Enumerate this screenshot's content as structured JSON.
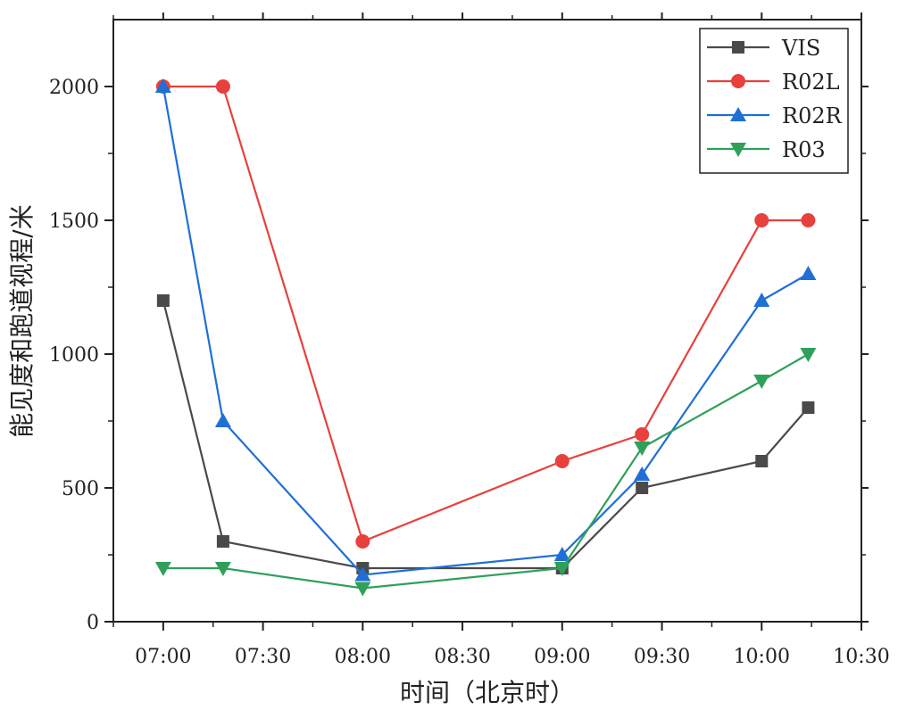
{
  "chart_data": {
    "type": "line",
    "title": "",
    "xlabel": "时间（北京时）",
    "ylabel": "能见度和跑道视程/米",
    "x_tick_labels": [
      "07:00",
      "07:30",
      "08:00",
      "08:30",
      "09:00",
      "09:30",
      "10:00",
      "10:30"
    ],
    "x_ticks_minutes": [
      0,
      30,
      60,
      90,
      120,
      150,
      180,
      210
    ],
    "y_tick_labels": [
      "0",
      "500",
      "1000",
      "1500",
      "2000"
    ],
    "y_ticks": [
      0,
      500,
      1000,
      1500,
      2000
    ],
    "xlim_minutes": [
      -15,
      210
    ],
    "ylim": [
      0,
      2250
    ],
    "grid": false,
    "legend_position": "top-right",
    "x_minutes": [
      0,
      18,
      60,
      120,
      144,
      180,
      194
    ],
    "series": [
      {
        "name": "VIS",
        "color": "#4a4a4a",
        "marker": "square",
        "values": [
          1200,
          300,
          200,
          200,
          500,
          600,
          800
        ]
      },
      {
        "name": "R02L",
        "color": "#e8403c",
        "marker": "circle",
        "values": [
          2000,
          2000,
          300,
          600,
          700,
          1500,
          1500
        ]
      },
      {
        "name": "R02R",
        "color": "#1f6fd6",
        "marker": "triangle-up",
        "values": [
          2000,
          750,
          175,
          250,
          550,
          1200,
          1300
        ]
      },
      {
        "name": "R03",
        "color": "#2fa05a",
        "marker": "triangle-down",
        "values": [
          200,
          200,
          125,
          200,
          650,
          900,
          1000
        ]
      }
    ]
  }
}
